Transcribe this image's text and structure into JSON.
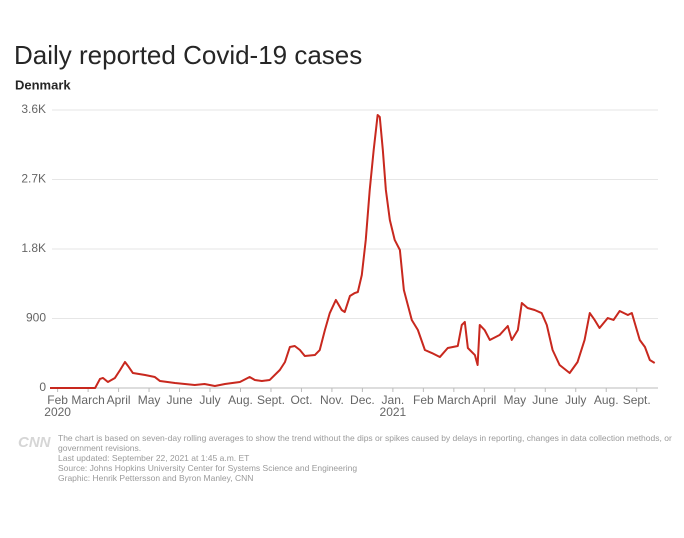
{
  "chart_data": {
    "type": "line",
    "title": "Daily reported Covid-19 cases",
    "subtitle": "Denmark",
    "logo": "CNN",
    "note": "The chart is based on seven-day rolling averages to show the trend without the dips or spikes caused by delays in reporting, changes in data collection methods, or government revisions.",
    "updated": "Last updated: September 22, 2021 at 1:45 a.m. ET",
    "source": "Source: Johns Hopkins University Center for Systems Science and Engineering",
    "credit": "Graphic: Henrik Pettersson and Byron Manley, CNN",
    "xlim": [
      -0.25,
      19.6
    ],
    "xticks": [
      {
        "value": 0,
        "label": "Feb"
      },
      {
        "value": 1,
        "label": "March"
      },
      {
        "value": 2,
        "label": "April"
      },
      {
        "value": 3,
        "label": "May"
      },
      {
        "value": 4,
        "label": "June"
      },
      {
        "value": 5,
        "label": "July"
      },
      {
        "value": 6,
        "label": "Aug."
      },
      {
        "value": 7,
        "label": "Sept."
      },
      {
        "value": 8,
        "label": "Oct."
      },
      {
        "value": 9,
        "label": "Nov."
      },
      {
        "value": 10,
        "label": "Dec."
      },
      {
        "value": 11,
        "label": "Jan."
      },
      {
        "value": 12,
        "label": "Feb"
      },
      {
        "value": 13,
        "label": "March"
      },
      {
        "value": 14,
        "label": "April"
      },
      {
        "value": 15,
        "label": "May"
      },
      {
        "value": 16,
        "label": "June"
      },
      {
        "value": 17,
        "label": "July"
      },
      {
        "value": 18,
        "label": "Aug."
      },
      {
        "value": 19,
        "label": "Sept."
      }
    ],
    "year_labels": [
      {
        "value": 0,
        "label": "2020"
      },
      {
        "value": 11,
        "label": "2021"
      }
    ],
    "ylim": [
      0,
      3600
    ],
    "yticks": [
      0,
      900,
      {
        "value": 1800,
        "label": "1.8K"
      },
      {
        "value": 2700,
        "label": "2.7K"
      },
      {
        "value": 3600,
        "label": "3.6K"
      }
    ],
    "grid": true,
    "color": "#c8281e",
    "x": [
      -0.25,
      0.5,
      1.23,
      1.39,
      1.49,
      1.65,
      1.88,
      2.05,
      2.21,
      2.31,
      2.47,
      2.87,
      3.19,
      3.36,
      3.85,
      4.5,
      4.82,
      5.16,
      5.49,
      5.98,
      6.3,
      6.47,
      6.7,
      6.96,
      7.29,
      7.46,
      7.62,
      7.78,
      7.95,
      8.11,
      8.44,
      8.6,
      8.77,
      8.93,
      9.13,
      9.32,
      9.42,
      9.59,
      9.75,
      9.85,
      9.98,
      10.11,
      10.24,
      10.37,
      10.5,
      10.57,
      10.67,
      10.77,
      10.9,
      11.06,
      11.23,
      11.36,
      11.49,
      11.62,
      11.82,
      12.05,
      12.28,
      12.54,
      12.8,
      13.13,
      13.26,
      13.36,
      13.46,
      13.69,
      13.78,
      13.85,
      14.01,
      14.18,
      14.5,
      14.77,
      14.9,
      15.1,
      15.23,
      15.42,
      15.65,
      15.88,
      16.05,
      16.24,
      16.47,
      16.8,
      17.06,
      17.29,
      17.46,
      17.62,
      17.78,
      18.05,
      18.24,
      18.44,
      18.71,
      18.84,
      19.1,
      19.27,
      19.43,
      19.59
    ],
    "values": [
      0,
      0,
      0,
      117,
      130,
      78,
      130,
      233,
      337,
      285,
      194,
      168,
      142,
      90,
      65,
      39,
      52,
      26,
      52,
      78,
      142,
      104,
      90,
      104,
      233,
      337,
      531,
      544,
      492,
      414,
      427,
      492,
      751,
      971,
      1140,
      1010,
      984,
      1191,
      1230,
      1243,
      1463,
      1917,
      2564,
      3082,
      3535,
      3509,
      3082,
      2564,
      2176,
      1917,
      1787,
      1269,
      1075,
      881,
      751,
      492,
      453,
      401,
      518,
      544,
      816,
      855,
      518,
      427,
      298,
      816,
      751,
      622,
      686,
      803,
      622,
      751,
      1101,
      1036,
      1010,
      971,
      816,
      492,
      298,
      194,
      337,
      622,
      971,
      881,
      777,
      906,
      881,
      997,
      945,
      971,
      622,
      531,
      363,
      324
    ]
  }
}
